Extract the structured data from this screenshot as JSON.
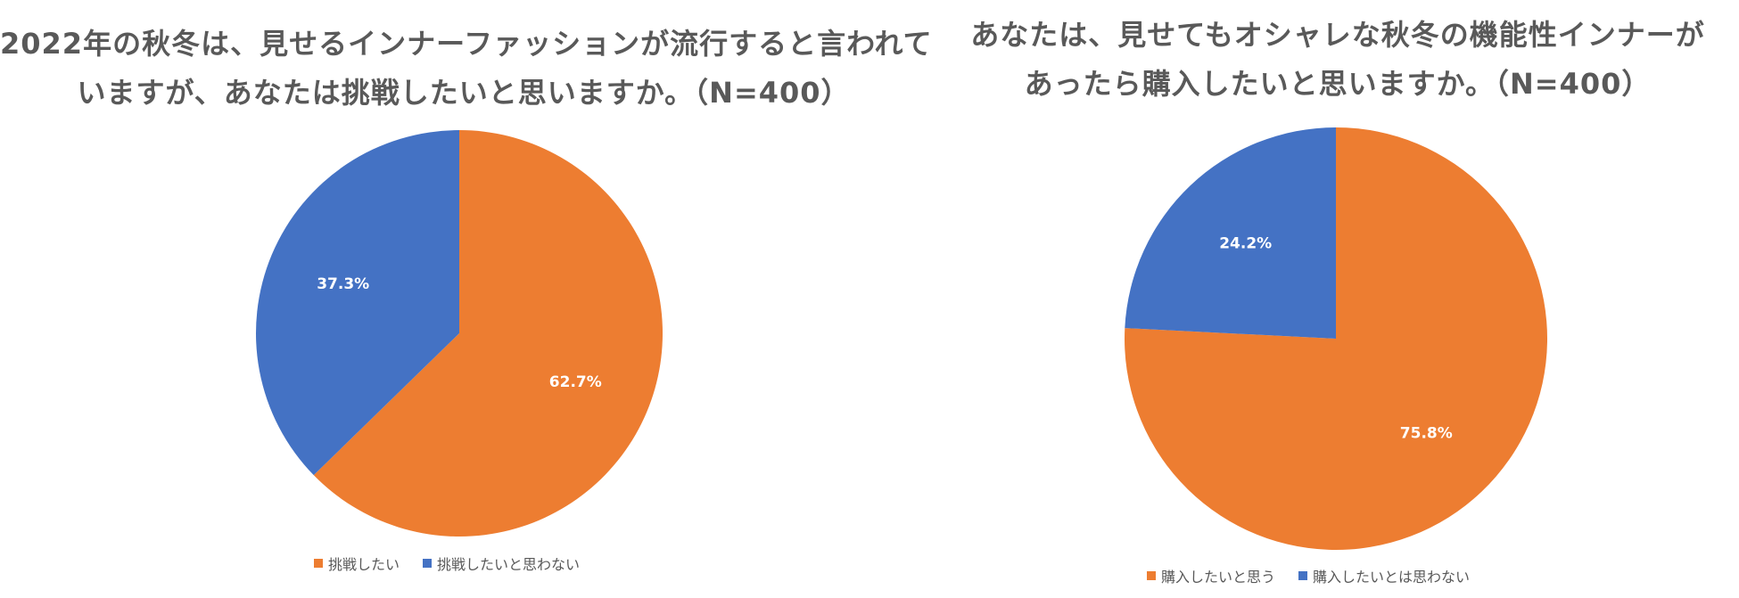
{
  "colors": {
    "orange": "#ED7D31",
    "blue": "#4472C4",
    "title_text": "#595959",
    "label_text": "#FFFFFF"
  },
  "chart_data": [
    {
      "type": "pie",
      "title_lines": [
        "2022年の秋冬は、見せるインナーファッションが流行すると言われて",
        "いますが、あなたは挑戦したいと思いますか。（N=400）"
      ],
      "legend_position": "bottom",
      "slices": [
        {
          "label": "挑戦したい",
          "value": 62.7,
          "display": "62.7%",
          "color": "#ED7D31"
        },
        {
          "label": "挑戦したいと思わない",
          "value": 37.3,
          "display": "37.3%",
          "color": "#4472C4"
        }
      ]
    },
    {
      "type": "pie",
      "title_lines": [
        "あなたは、見せてもオシャレな秋冬の機能性インナーが",
        "あったら購入したいと思いますか。（N=400）"
      ],
      "legend_position": "bottom",
      "slices": [
        {
          "label": "購入したいと思う",
          "value": 75.8,
          "display": "75.8%",
          "color": "#ED7D31"
        },
        {
          "label": "購入したいとは思わない",
          "value": 24.2,
          "display": "24.2%",
          "color": "#4472C4"
        }
      ]
    }
  ]
}
